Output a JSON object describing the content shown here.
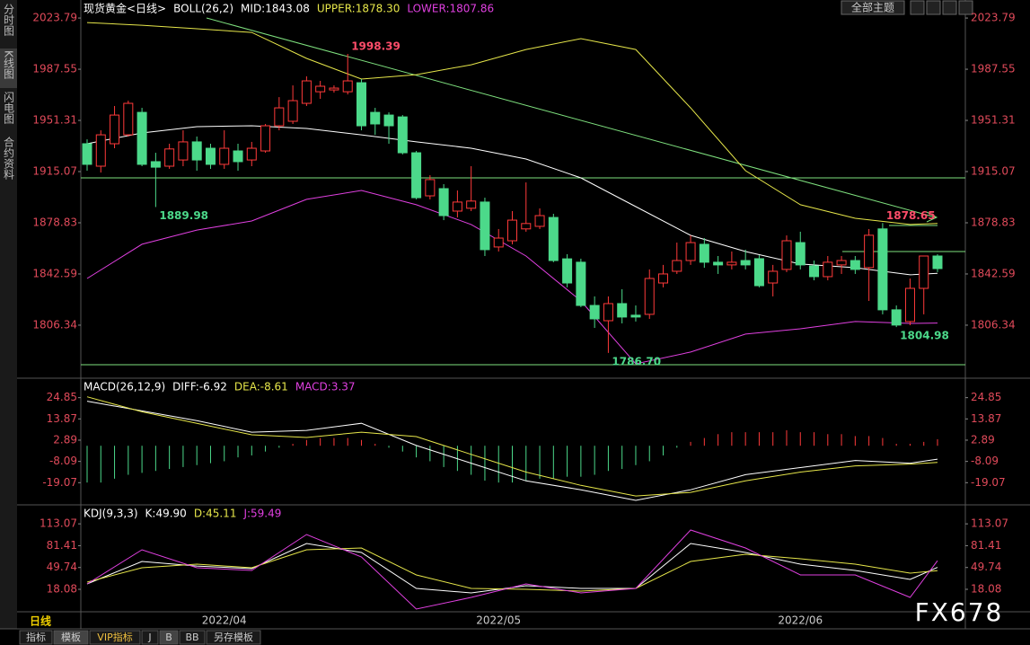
{
  "side_tabs": [
    "分时图",
    "K线图",
    "闪电图",
    "合约资料"
  ],
  "top_bar": {
    "theme_button": "全部主题"
  },
  "bottom_bar": {
    "period": "日线",
    "tabs": [
      "指标",
      "模板",
      "VIP指标",
      "J",
      "B",
      "BB",
      "另存模板"
    ]
  },
  "watermark": "FX678",
  "chart_data": [
    {
      "type": "candlestick",
      "title": "现货黄金<日线>",
      "indicator": "BOLL(26,2)",
      "categories": [
        null,
        null,
        null,
        null,
        null,
        null,
        null,
        null,
        null,
        null,
        "2022/04",
        null,
        null,
        null,
        null,
        null,
        null,
        null,
        null,
        null,
        null,
        null,
        null,
        null,
        null,
        null,
        null,
        null,
        null,
        null,
        "2022/05",
        null,
        null,
        null,
        null,
        null,
        null,
        null,
        null,
        null,
        null,
        null,
        null,
        null,
        null,
        null,
        null,
        null,
        null,
        null,
        null,
        null,
        "2022/06",
        null,
        null,
        null,
        null,
        null,
        null,
        null,
        null,
        null,
        null
      ],
      "open": [
        1934.8,
        1918.9,
        1934.8,
        1941.1,
        1957.0,
        1922.1,
        1918.9,
        1923.3,
        1936.1,
        1931.6,
        1920.2,
        1929.7,
        1923.3,
        1929.7,
        1947.5,
        1950.7,
        1963.4,
        1971.6,
        1972.9,
        1971.6,
        1978.0,
        1957.0,
        1955.1,
        1953.8,
        1928.4,
        1897.9,
        1903.0,
        1887.1,
        1889.1,
        1893.5,
        1861.7,
        1866.1,
        1874.5,
        1876.3,
        1882.6,
        1853.3,
        1850.9,
        1820.3,
        1809.5,
        1821.6,
        1813.4,
        1814.0,
        1836.2,
        1844.5,
        1852.1,
        1863.6,
        1850.9,
        1849.0,
        1852.1,
        1853.4,
        1836.2,
        1845.8,
        1864.8,
        1848.3,
        1840.7,
        1849.0,
        1852.1,
        1847.1,
        1874.5,
        1817.2,
        1808.9,
        1832.4,
        1855.3
      ],
      "high": [
        1937.9,
        1944.3,
        1961.5,
        1965.3,
        1960.2,
        1928.4,
        1934.8,
        1944.3,
        1939.9,
        1934.8,
        1944.3,
        1934.8,
        1936.1,
        1948.8,
        1967.8,
        1976.1,
        1982.5,
        1979.3,
        1976.1,
        1998.39,
        1980.6,
        1960.2,
        1957.0,
        1955.1,
        1929.7,
        1912.5,
        1906.2,
        1901.7,
        1918.9,
        1896.6,
        1874.4,
        1887.1,
        1907.4,
        1889.0,
        1885.2,
        1856.6,
        1853.4,
        1826.7,
        1826.7,
        1831.8,
        1820.3,
        1845.8,
        1849.0,
        1864.8,
        1869.9,
        1868.0,
        1855.3,
        1858.5,
        1859.8,
        1855.9,
        1849.0,
        1869.9,
        1872.5,
        1852.1,
        1855.3,
        1855.3,
        1855.3,
        1874.4,
        1878.65,
        1820.3,
        1839.4,
        1855.3,
        1856.6
      ],
      "low": [
        1915.7,
        1914.4,
        1931.6,
        1939.9,
        1918.9,
        1889.98,
        1917.0,
        1918.9,
        1915.7,
        1917.0,
        1917.0,
        1915.7,
        1918.9,
        1928.4,
        1944.3,
        1948.8,
        1961.5,
        1966.6,
        1971.0,
        1969.7,
        1944.3,
        1941.1,
        1934.8,
        1927.2,
        1895.4,
        1895.4,
        1880.7,
        1882.6,
        1887.1,
        1855.3,
        1858.5,
        1863.6,
        1872.5,
        1874.4,
        1850.9,
        1833.1,
        1819.1,
        1804.4,
        1786.7,
        1807.6,
        1808.9,
        1810.8,
        1833.1,
        1842.6,
        1849.0,
        1847.0,
        1842.6,
        1845.8,
        1845.8,
        1833.1,
        1826.7,
        1843.9,
        1845.8,
        1838.1,
        1838.1,
        1842.6,
        1842.6,
        1823.5,
        1814.0,
        1804.98,
        1806.3,
        1814.0,
        1843.9
      ],
      "close": [
        1920.2,
        1941.1,
        1955.1,
        1963.4,
        1920.2,
        1918.2,
        1931.1,
        1936.1,
        1923.3,
        1920.2,
        1931.6,
        1922.1,
        1931.6,
        1947.5,
        1960.2,
        1965.3,
        1979.3,
        1975.5,
        1974.2,
        1979.3,
        1947.5,
        1948.8,
        1947.5,
        1928.4,
        1896.6,
        1909.4,
        1883.9,
        1893.5,
        1894.2,
        1859.8,
        1868.0,
        1880.7,
        1878.3,
        1883.9,
        1852.1,
        1836.2,
        1820.3,
        1810.8,
        1821.6,
        1812.1,
        1812.1,
        1839.4,
        1842.6,
        1852.1,
        1864.8,
        1850.9,
        1849.0,
        1850.9,
        1849.0,
        1834.3,
        1844.5,
        1866.1,
        1849.0,
        1840.7,
        1850.9,
        1852.1,
        1845.8,
        1870.0,
        1817.2,
        1806.4,
        1832.4,
        1855.3,
        1846.4
      ],
      "up_color": "#ff3a3a",
      "down_color": "#4cd98a",
      "overlays": {
        "x": [
          0,
          4,
          8,
          12,
          16,
          20,
          24,
          28,
          32,
          36,
          40,
          44,
          48,
          52,
          56,
          60,
          62
        ],
        "series": [
          {
            "label": "MID:1843.08",
            "color": "#ffffff",
            "values": [
              1934.8,
              1942.4,
              1946.9,
              1947.5,
              1945.6,
              1941.1,
              1936.1,
              1931.6,
              1924.0,
              1910.6,
              1890.3,
              1869.9,
              1858.5,
              1849.6,
              1847.0,
              1842.0,
              1843.08
            ]
          },
          {
            "label": "UPPER:1878.30",
            "color": "#e6e64a",
            "values": [
              2020.6,
              2018.7,
              2016.2,
              2013.6,
              1995.2,
              1980.6,
              1983.7,
              1990.7,
              2001.5,
              2009.2,
              2001.5,
              1960.2,
              1915.7,
              1891.6,
              1882.0,
              1877.6,
              1878.3
            ]
          },
          {
            "label": "LOWER:1807.86",
            "color": "#e040e0",
            "values": [
              1839.4,
              1863.6,
              1873.7,
              1880.1,
              1895.4,
              1901.7,
              1891.6,
              1877.6,
              1855.3,
              1823.5,
              1779.0,
              1787.3,
              1800.0,
              1803.8,
              1808.9,
              1807.6,
              1807.86
            ]
          }
        ]
      },
      "annotations": [
        {
          "label": "1998.39",
          "value": 1998.39,
          "color": "#ff4d6a"
        },
        {
          "label": "1889.98",
          "value": 1889.98,
          "color": "#4cd98a"
        },
        {
          "label": "1786.70",
          "value": 1786.7,
          "color": "#4cd98a"
        },
        {
          "label": "1878.65",
          "value": 1878.65,
          "color": "#ff4d6a"
        },
        {
          "label": "1804.98",
          "value": 1804.98,
          "color": "#4cd98a"
        }
      ],
      "ylim": [
        1770.7,
        2030.2
      ],
      "yticks": [
        2023.79,
        1987.55,
        1951.31,
        1915.07,
        1878.83,
        1842.59,
        1806.34
      ]
    },
    {
      "type": "macd",
      "title": "MACD(26,12,9)",
      "histogram": {
        "label": "MACD:3.37",
        "color": "#e040e0",
        "up_color": "#ff3a3a",
        "down_color": "#4cd98a",
        "values": [
          -19,
          -19,
          -17,
          -15,
          -14,
          -13,
          -12,
          -11,
          -10,
          -9,
          -8,
          -6,
          -5,
          -3,
          -1,
          1,
          3,
          4,
          4,
          4,
          3,
          1,
          -1,
          -3,
          -6,
          -8,
          -11,
          -13,
          -15,
          -18,
          -19,
          -19,
          -18,
          -17,
          -17,
          -16,
          -16,
          -15,
          -13,
          -12,
          -10,
          -8,
          -5,
          -1,
          2,
          4,
          6,
          7,
          7,
          7,
          7,
          8,
          7,
          7,
          6,
          6,
          5,
          5,
          4,
          1,
          1,
          2,
          3.37
        ]
      },
      "lines": {
        "x": [
          0,
          4,
          8,
          12,
          16,
          20,
          24,
          28,
          32,
          36,
          40,
          44,
          48,
          52,
          56,
          60,
          62
        ],
        "series": [
          {
            "label": "DIFF:-6.92",
            "color": "#ffffff",
            "values": [
              23.02,
              17.99,
              12.96,
              7.01,
              7.92,
              11.58,
              0.14,
              -9.01,
              -18.16,
              -22.73,
              -28.22,
              -22.73,
              -14.95,
              -11.29,
              -7.63,
              -9.01,
              -6.92
            ]
          },
          {
            "label": "DEA:-8.61",
            "color": "#e6e64a",
            "values": [
              25.31,
              17.53,
              11.58,
              5.64,
              4.26,
              7.01,
              4.72,
              -4.43,
              -13.58,
              -20.44,
              -25.93,
              -24.1,
              -18.16,
              -13.58,
              -10.38,
              -9.46,
              -8.61
            ]
          }
        ]
      },
      "ylim": [
        -29.6,
        33.5
      ],
      "yticks": [
        24.85,
        13.87,
        2.89,
        -8.09,
        -19.07
      ]
    },
    {
      "type": "kdj",
      "title": "KDJ(9,3,3)",
      "lines": {
        "x": [
          0,
          4,
          8,
          12,
          16,
          20,
          24,
          28,
          32,
          36,
          40,
          44,
          48,
          52,
          56,
          60,
          62
        ],
        "series": [
          {
            "label": "K:49.90",
            "color": "#ffffff",
            "values": [
              25.9,
              58.5,
              51.9,
              48.0,
              84.5,
              71.5,
              19.4,
              12.9,
              23.3,
              19.4,
              19.4,
              84.5,
              71.5,
              54.6,
              45.4,
              32.4,
              49.9
            ]
          },
          {
            "label": "D:45.11",
            "color": "#e6e64a",
            "values": [
              28.5,
              49.4,
              54.6,
              49.4,
              75.4,
              78.0,
              38.9,
              19.4,
              18.1,
              15.5,
              19.4,
              58.5,
              68.9,
              62.4,
              54.6,
              41.5,
              45.11
            ]
          },
          {
            "label": "J:59.49",
            "color": "#e040e0",
            "values": [
              25.9,
              75.4,
              49.4,
              45.4,
              97.6,
              65.0,
              -10.6,
              6.4,
              25.9,
              12.9,
              19.4,
              104.1,
              78.0,
              38.9,
              38.9,
              6.4,
              59.49
            ]
          }
        ]
      },
      "ylim": [
        -13.2,
        135.4
      ],
      "yticks": [
        113.07,
        81.41,
        49.74,
        18.08
      ]
    }
  ]
}
